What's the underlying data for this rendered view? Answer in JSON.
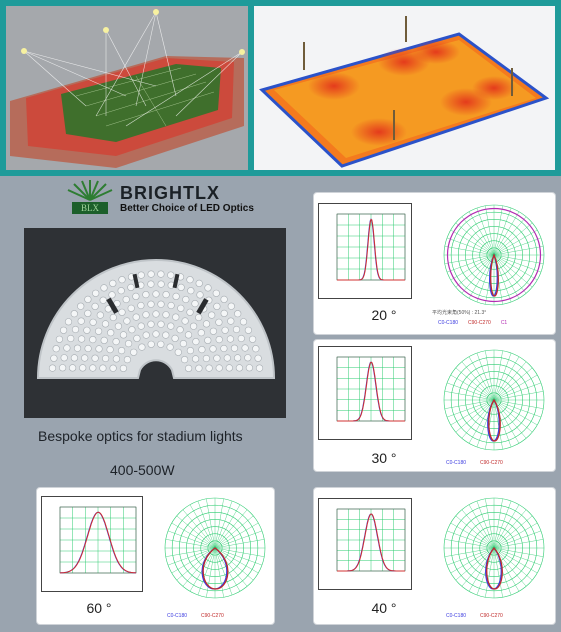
{
  "brand": {
    "name": "BRIGHTLX",
    "tagline": "Better Choice of LED Optics",
    "mark": "BLX"
  },
  "product": {
    "caption": "Bespoke optics for stadium lights",
    "power": "400-500W"
  },
  "polar_labels": {
    "unit": "单位: cd",
    "legend_c0": "C0-C180",
    "legend_c90": "C90-C270",
    "legend_c": "C1",
    "avg_text": "平均光束角(50%) : 21.3°"
  },
  "beams": [
    {
      "angle_label": "20 °",
      "width": 20
    },
    {
      "angle_label": "30 °",
      "width": 30
    },
    {
      "angle_label": "60 °",
      "width": 60
    },
    {
      "angle_label": "40 °",
      "width": 40
    }
  ]
}
